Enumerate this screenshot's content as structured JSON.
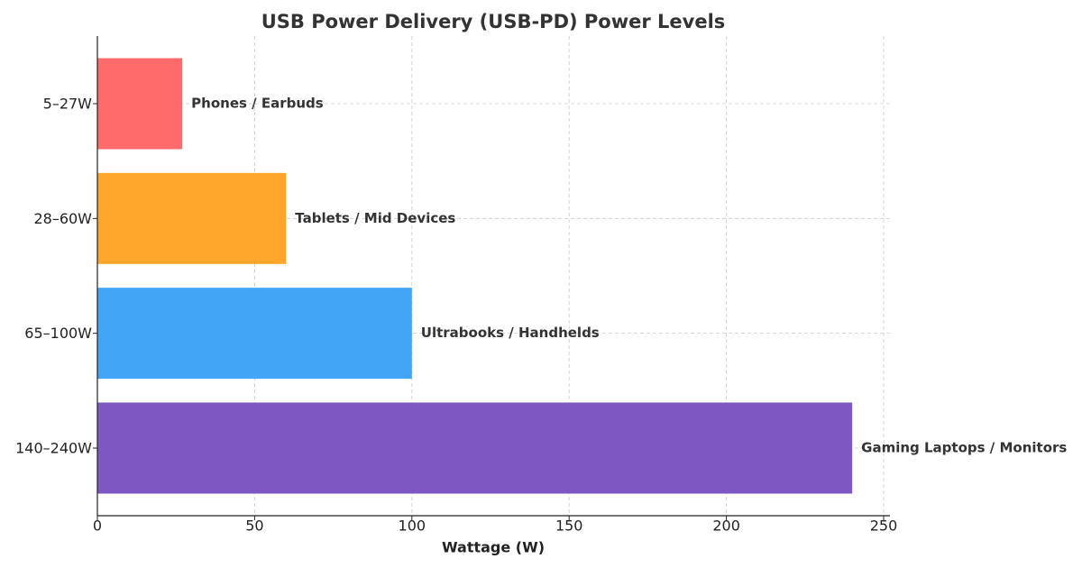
{
  "chart_data": {
    "type": "barh",
    "title": "USB Power Delivery (USB-PD) Power Levels",
    "x_label": "Wattage (W)",
    "categories": [
      "5–27W",
      "28–60W",
      "65–100W",
      "140–240W"
    ],
    "values": [
      27,
      60,
      100,
      240
    ],
    "annotations": [
      "Phones / Earbuds",
      "Tablets / Mid Devices",
      "Ultrabooks / Handhelds",
      "Gaming Laptops / Monitors"
    ],
    "colors": [
      "#ff6b6b",
      "#ffa62b",
      "#42a5f5",
      "#7e57c2"
    ],
    "xlim": [
      0,
      252
    ],
    "xticks": [
      0,
      50,
      100,
      150,
      200,
      250
    ],
    "grid": true
  }
}
